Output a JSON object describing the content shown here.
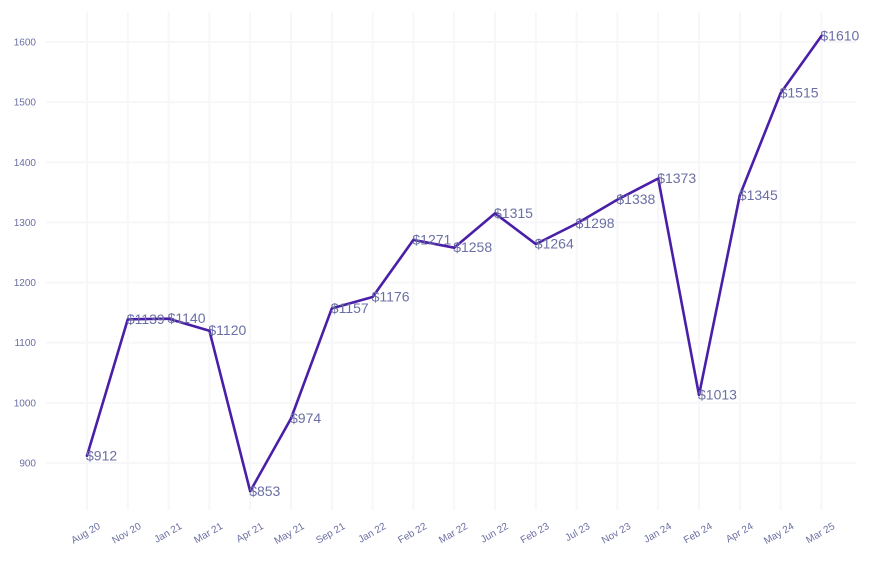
{
  "chart_data": {
    "type": "line",
    "title": "",
    "xlabel": "",
    "ylabel": "",
    "categories": [
      "Aug 20",
      "Nov 20",
      "Jan 21",
      "Mar 21",
      "Apr 21",
      "May 21",
      "Sep 21",
      "Jan 22",
      "Feb 22",
      "Mar 22",
      "Jun 22",
      "Feb 23",
      "Jul 23",
      "Nov 23",
      "Jan 24",
      "Feb 24",
      "Apr 24",
      "May 24",
      "Mar 25"
    ],
    "series": [
      {
        "name": "Price",
        "values": [
          912,
          1139,
          1140,
          1120,
          853,
          974,
          1157,
          1176,
          1271,
          1258,
          1315,
          1264,
          1298,
          1338,
          1373,
          1013,
          1345,
          1515,
          1610
        ],
        "data_labels": [
          "$912",
          "$1139",
          "$1140",
          "$1120",
          "$853",
          "$974",
          "$1157",
          "$1176",
          "$1271",
          "$1258",
          "$1315",
          "$1264",
          "$1298",
          "$1338",
          "$1373",
          "$1013",
          "$1345",
          "$1515",
          "$1610"
        ]
      }
    ],
    "y_ticks": [
      900,
      1000,
      1100,
      1200,
      1300,
      1400,
      1500,
      1600
    ],
    "y_tick_labels": [
      "900",
      "1000",
      "1100",
      "1200",
      "1300",
      "1400",
      "1500",
      "1600"
    ],
    "ylim": [
      820,
      1640
    ],
    "grid": true,
    "legend": "none",
    "colors": {
      "line": "#4a1fa8",
      "text": "#6b6fa3",
      "grid": "#f7f7fa"
    }
  }
}
